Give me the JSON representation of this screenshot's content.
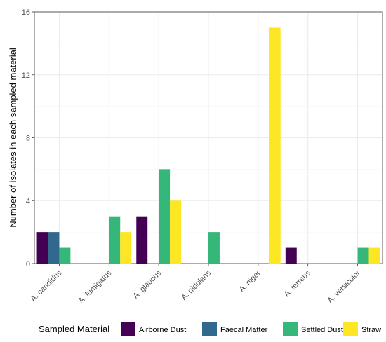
{
  "chart_data": {
    "type": "bar",
    "title": "",
    "xlabel": "",
    "ylabel": "Number of isolates in each sampled material",
    "ylim": [
      0,
      16
    ],
    "yticks": [
      0,
      4,
      8,
      12,
      16
    ],
    "grid": true,
    "legend_position": "bottom",
    "legend_title": "Sampled Material",
    "categories": [
      "A. candidus",
      "A. fumigatus",
      "A. glaucus",
      "A. nidulans",
      "A. niger",
      "A. terreus",
      "A. versicolor"
    ],
    "series": [
      {
        "name": "Airborne Dust",
        "color": "#440154",
        "values": [
          2,
          null,
          3,
          null,
          null,
          1,
          null
        ]
      },
      {
        "name": "Faecal Matter",
        "color": "#31688E",
        "values": [
          2,
          null,
          null,
          null,
          null,
          null,
          null
        ]
      },
      {
        "name": "Settled Dust",
        "color": "#35B779",
        "values": [
          1,
          3,
          6,
          2,
          null,
          null,
          1
        ]
      },
      {
        "name": "Straw",
        "color": "#FDE725",
        "values": [
          null,
          2,
          4,
          null,
          15,
          null,
          1
        ]
      }
    ]
  }
}
